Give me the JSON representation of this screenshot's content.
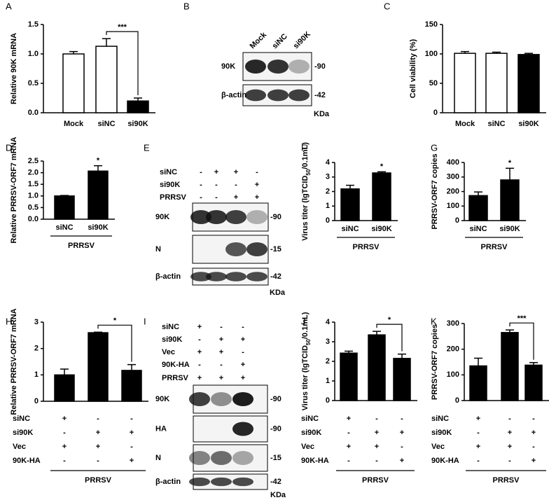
{
  "chart_data": [
    {
      "type": "bar",
      "panel": "A",
      "ylabel": "Relative 90K mRNA",
      "categories": [
        "Mock",
        "siNC",
        "si90K"
      ],
      "values": [
        1.0,
        1.13,
        0.2
      ],
      "errors": [
        0.04,
        0.13,
        0.05
      ],
      "colors": [
        "#ffffff",
        "#ffffff",
        "#000000"
      ],
      "ylim": [
        0,
        1.5
      ],
      "yticks": [
        {
          "value": 0,
          "label": "0.0"
        },
        0.5,
        {
          "value": 1,
          "label": "1.0"
        },
        1.5
      ],
      "significance": {
        "text": "***",
        "bars": [
          1,
          2
        ]
      }
    },
    {
      "type": "bar",
      "panel": "C",
      "ylabel": "Cell viability (%)",
      "categories": [
        "Mock",
        "siNC",
        "si90K"
      ],
      "values": [
        101,
        101,
        99
      ],
      "errors": [
        3,
        2,
        2
      ],
      "colors": [
        "#ffffff",
        "#ffffff",
        "#000000"
      ],
      "ylim": [
        0,
        150
      ],
      "yticks": [
        0,
        50,
        100,
        150
      ]
    },
    {
      "type": "bar",
      "panel": "D",
      "ylabel": "Relative PRRSV-ORF7 mRNA",
      "categories": [
        "siNC",
        "si90K"
      ],
      "values": [
        1.0,
        2.07
      ],
      "errors": [
        0.02,
        0.23
      ],
      "colors": [
        "#000000",
        "#000000"
      ],
      "ylim": [
        0,
        2.5
      ],
      "yticks": [
        {
          "value": 0,
          "label": "0.0"
        },
        0.5,
        {
          "value": 1,
          "label": "1.0"
        },
        1.5,
        {
          "value": 2,
          "label": "2.0"
        },
        2.5
      ],
      "significance": {
        "text": "*",
        "bars": [
          1
        ]
      },
      "group": "PRRSV"
    },
    {
      "type": "bar",
      "panel": "F",
      "ylabel": [
        "Virus titer (lgTCID",
        "50",
        "/0.1mL)"
      ],
      "categories": [
        "siNC",
        "si90K"
      ],
      "values": [
        2.18,
        3.28
      ],
      "errors": [
        0.25,
        0.08
      ],
      "colors": [
        "#000000",
        "#000000"
      ],
      "ylim": [
        0,
        4
      ],
      "yticks": [
        0,
        1,
        2,
        3,
        4
      ],
      "significance": {
        "text": "*",
        "bars": [
          1
        ]
      },
      "group": "PRRSV"
    },
    {
      "type": "bar",
      "panel": "G",
      "ylabel": "PRRSV-ORF7 copies",
      "categories": [
        "siNC",
        "si90K"
      ],
      "values": [
        172,
        280
      ],
      "errors": [
        25,
        80
      ],
      "colors": [
        "#000000",
        "#000000"
      ],
      "ylim": [
        0,
        400
      ],
      "yticks": [
        0,
        100,
        200,
        300,
        400
      ],
      "significance": {
        "text": "*",
        "bars": [
          1
        ]
      },
      "group": "PRRSV"
    },
    {
      "type": "bar",
      "panel": "H",
      "ylabel": "Relative PRRSV-ORF7 mRNA",
      "values": [
        1.0,
        2.6,
        1.17
      ],
      "errors": [
        0.22,
        0.02,
        0.22
      ],
      "colors": [
        "#000000",
        "#000000",
        "#000000"
      ],
      "ylim": [
        0,
        3
      ],
      "yticks": [
        0,
        1,
        2,
        3
      ],
      "significance": {
        "text": "*",
        "bars": [
          1,
          2
        ]
      },
      "group": "PRRSV",
      "conditions": [
        {
          "name": "siNC",
          "signs": [
            "+",
            "-",
            "-"
          ]
        },
        {
          "name": "si90K",
          "signs": [
            "-",
            "+",
            "+"
          ]
        },
        {
          "name": "Vec",
          "signs": [
            "+",
            "+",
            "-"
          ]
        },
        {
          "name": "90K-HA",
          "signs": [
            "-",
            "-",
            "+"
          ]
        }
      ]
    },
    {
      "type": "bar",
      "panel": "J",
      "ylabel": [
        "Virus titer (lgTCID",
        "50",
        "/0.1mL)"
      ],
      "values": [
        2.42,
        3.35,
        2.15
      ],
      "errors": [
        0.1,
        0.18,
        0.22
      ],
      "colors": [
        "#000000",
        "#000000",
        "#000000"
      ],
      "ylim": [
        0,
        4
      ],
      "yticks": [
        0,
        1,
        2,
        3,
        4
      ],
      "significance": {
        "text": "*",
        "bars": [
          1,
          2
        ]
      },
      "group": "PRRSV",
      "conditions": [
        {
          "name": "siNC",
          "signs": [
            "+",
            "-",
            "-"
          ]
        },
        {
          "name": "si90K",
          "signs": [
            "-",
            "+",
            "+"
          ]
        },
        {
          "name": "Vec",
          "signs": [
            "+",
            "+",
            "-"
          ]
        },
        {
          "name": "90K-HA",
          "signs": [
            "-",
            "-",
            "+"
          ]
        }
      ]
    },
    {
      "type": "bar",
      "panel": "K",
      "ylabel": "PRRSV-ORF7 copies",
      "values": [
        135,
        265,
        138
      ],
      "errors": [
        30,
        10,
        10
      ],
      "colors": [
        "#000000",
        "#000000",
        "#000000"
      ],
      "ylim": [
        0,
        300
      ],
      "yticks": [
        0,
        100,
        200,
        300
      ],
      "significance": {
        "text": "***",
        "bars": [
          1,
          2
        ]
      },
      "group": "PRRSV",
      "conditions": [
        {
          "name": "siNC",
          "signs": [
            "+",
            "-",
            "-"
          ]
        },
        {
          "name": "si90K",
          "signs": [
            "-",
            "+",
            "+"
          ]
        },
        {
          "name": "Vec",
          "signs": [
            "+",
            "+",
            "-"
          ]
        },
        {
          "name": "90K-HA",
          "signs": [
            "-",
            "-",
            "+"
          ]
        }
      ]
    }
  ],
  "blots": [
    {
      "panel": "B",
      "lanes": [
        "Mock",
        "siNC",
        "si90K"
      ],
      "rows": [
        {
          "label": "90K",
          "marker": "-90"
        },
        {
          "label": "β-actin",
          "marker": "-42"
        }
      ],
      "unit": "KDa"
    },
    {
      "panel": "E",
      "conditions": [
        {
          "name": "siNC",
          "signs": [
            "-",
            "+",
            "+",
            "-"
          ]
        },
        {
          "name": "si90K",
          "signs": [
            "-",
            "-",
            "-",
            "+"
          ]
        },
        {
          "name": "PRRSV",
          "signs": [
            "-",
            "-",
            "+",
            "+"
          ]
        }
      ],
      "rows": [
        {
          "label": "90K",
          "marker": "-90"
        },
        {
          "label": "N",
          "marker": "-15"
        },
        {
          "label": "β-actin",
          "marker": "-42"
        }
      ],
      "unit": "KDa"
    },
    {
      "panel": "I",
      "conditions": [
        {
          "name": "siNC",
          "signs": [
            "+",
            "-",
            "-"
          ]
        },
        {
          "name": "si90K",
          "signs": [
            "-",
            "+",
            "+"
          ]
        },
        {
          "name": "Vec",
          "signs": [
            "+",
            "+",
            "-"
          ]
        },
        {
          "name": "90K-HA",
          "signs": [
            "-",
            "-",
            "+"
          ]
        },
        {
          "name": "PRRSV",
          "signs": [
            "+",
            "+",
            "+"
          ]
        }
      ],
      "rows": [
        {
          "label": "90K",
          "marker": "-90"
        },
        {
          "label": "HA",
          "marker": "-90"
        },
        {
          "label": "N",
          "marker": "-15"
        },
        {
          "label": "β-actin",
          "marker": "-42"
        }
      ],
      "unit": "KDa"
    }
  ]
}
